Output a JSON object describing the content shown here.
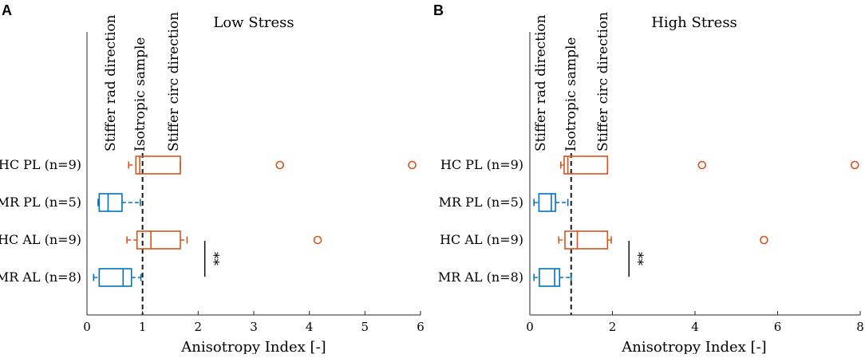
{
  "chart_data": [
    {
      "type": "boxplot",
      "panel_label": "A",
      "title": "Low Stress",
      "xlabel": "Anisotropy Index [-]",
      "xlim": [
        0,
        6
      ],
      "xticks": [
        0,
        1,
        2,
        3,
        4,
        5,
        6
      ],
      "categories": [
        "HC PL (n=9)",
        "MR PL (n=5)",
        "HC AL (n=9)",
        "MR AL (n=8)"
      ],
      "reference_line": 1,
      "annotations": [
        "Stiffer rad direction",
        "Isotropic sample",
        "Stiffer circ direction"
      ],
      "boxes": [
        {
          "category": "HC PL (n=9)",
          "color": "#D95319",
          "whisker_low": 0.75,
          "q1": 0.88,
          "median": 0.95,
          "q3": 1.68,
          "whisker_high": 1.68,
          "outliers": [
            3.47,
            5.85
          ]
        },
        {
          "category": "MR PL (n=5)",
          "color": "#0072BD",
          "whisker_low": 0.2,
          "q1": 0.22,
          "median": 0.38,
          "q3": 0.63,
          "whisker_high": 0.96,
          "outliers": []
        },
        {
          "category": "HC AL (n=9)",
          "color": "#D95319",
          "whisker_low": 0.72,
          "q1": 0.9,
          "median": 1.15,
          "q3": 1.68,
          "whisker_high": 1.8,
          "outliers": [
            4.15
          ]
        },
        {
          "category": "MR AL (n=8)",
          "color": "#0072BD",
          "whisker_low": 0.12,
          "q1": 0.22,
          "median": 0.65,
          "q3": 0.8,
          "whisker_high": 0.97,
          "outliers": []
        }
      ],
      "significance": {
        "label": "**",
        "x": 2.12
      }
    },
    {
      "type": "boxplot",
      "panel_label": "B",
      "title": "High Stress",
      "xlabel": "Anisotropy Index [-]",
      "xlim": [
        0,
        8
      ],
      "xticks": [
        0,
        2,
        4,
        6,
        8
      ],
      "categories": [
        "HC PL (n=9)",
        "MR PL (n=5)",
        "HC AL (n=9)",
        "MR AL (n=8)"
      ],
      "reference_line": 1,
      "annotations": [
        "Stiffer rad direction",
        "Isotropic sample",
        "Stiffer circ direction"
      ],
      "boxes": [
        {
          "category": "HC PL (n=9)",
          "color": "#D95319",
          "whisker_low": 0.75,
          "q1": 0.83,
          "median": 0.92,
          "q3": 1.88,
          "whisker_high": 1.88,
          "outliers": [
            4.17,
            7.87
          ]
        },
        {
          "category": "MR PL (n=5)",
          "color": "#0072BD",
          "whisker_low": 0.1,
          "q1": 0.22,
          "median": 0.52,
          "q3": 0.62,
          "whisker_high": 0.92,
          "outliers": []
        },
        {
          "category": "HC AL (n=9)",
          "color": "#D95319",
          "whisker_low": 0.7,
          "q1": 0.85,
          "median": 1.15,
          "q3": 1.88,
          "whisker_high": 1.97,
          "outliers": [
            5.67
          ]
        },
        {
          "category": "MR AL (n=8)",
          "color": "#0072BD",
          "whisker_low": 0.1,
          "q1": 0.23,
          "median": 0.6,
          "q3": 0.72,
          "whisker_high": 1.0,
          "outliers": []
        }
      ],
      "significance": {
        "label": "**",
        "x": 2.4
      }
    }
  ]
}
